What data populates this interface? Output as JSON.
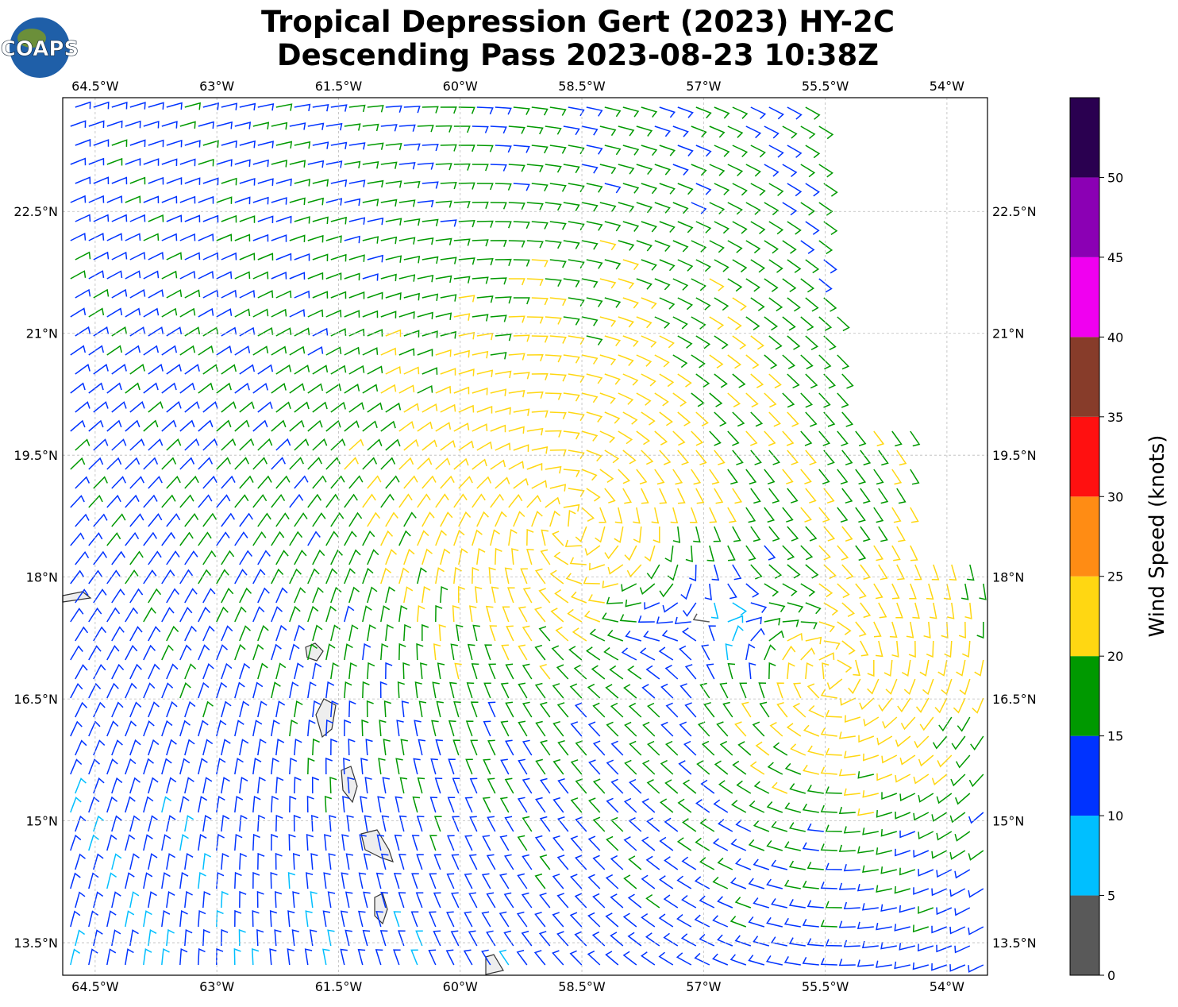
{
  "title": "Tropical Depression Gert (2023) HY-2C",
  "subtitle": "Descending Pass 2023-08-23 10:38Z",
  "logo": "COAPS",
  "map": {
    "xlim": [
      -64.9,
      -53.5
    ],
    "ylim": [
      13.1,
      23.9
    ],
    "xticks": [
      {
        "value": -64.5,
        "label": "64.5°W"
      },
      {
        "value": -63,
        "label": "63°W"
      },
      {
        "value": -61.5,
        "label": "61.5°W"
      },
      {
        "value": -60,
        "label": "60°W"
      },
      {
        "value": -58.5,
        "label": "58.5°W"
      },
      {
        "value": -57,
        "label": "57°W"
      },
      {
        "value": -55.5,
        "label": "55.5°W"
      },
      {
        "value": -54,
        "label": "54°W"
      }
    ],
    "yticks": [
      {
        "value": 13.5,
        "label": "13.5°N"
      },
      {
        "value": 15,
        "label": "15°N"
      },
      {
        "value": 16.5,
        "label": "16.5°N"
      },
      {
        "value": 18,
        "label": "18°N"
      },
      {
        "value": 19.5,
        "label": "19.5°N"
      },
      {
        "value": 21,
        "label": "21°N"
      },
      {
        "value": 22.5,
        "label": "22.5°N"
      }
    ],
    "grid": true
  },
  "colorbar": {
    "label": "Wind Speed (knots)",
    "bounds": [
      0,
      5,
      10,
      15,
      20,
      25,
      30,
      35,
      40,
      45,
      50,
      55
    ],
    "colors": [
      "#595959",
      "#00bfff",
      "#0033ff",
      "#009900",
      "#ffd712",
      "#ff8c14",
      "#ff1010",
      "#873c2a",
      "#f000f0",
      "#8b00b4",
      "#2a0050"
    ],
    "ticks": [
      0,
      5,
      10,
      15,
      20,
      25,
      30,
      35,
      40,
      45,
      50
    ]
  }
}
